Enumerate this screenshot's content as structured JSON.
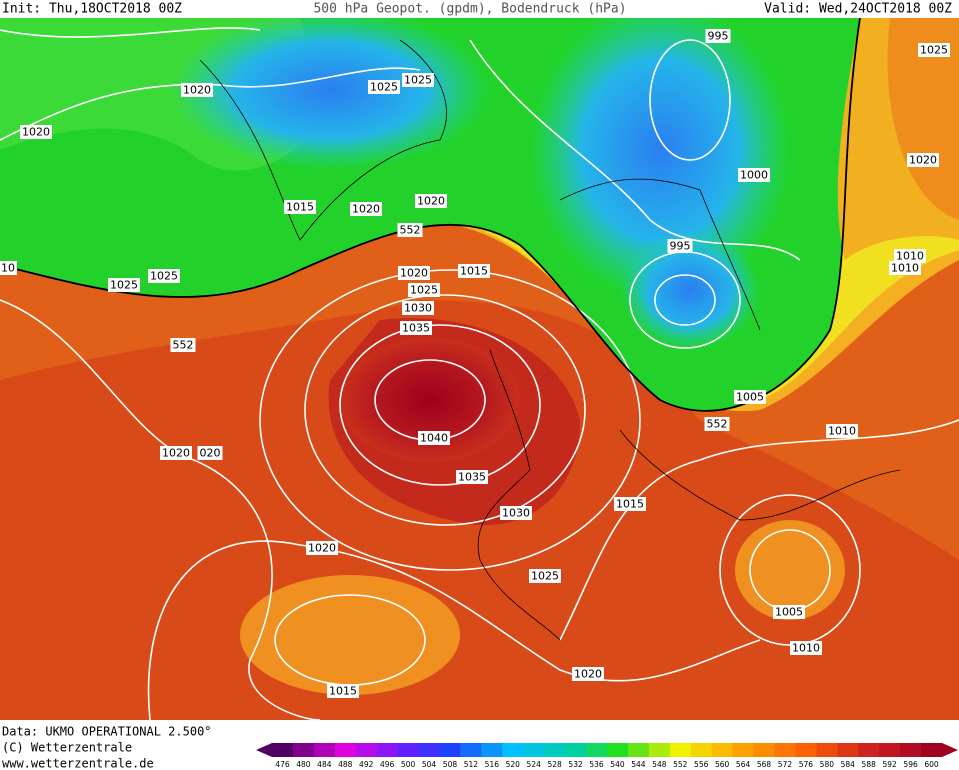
{
  "header": {
    "init": "Init: Thu,18OCT2018 00Z",
    "title": "500 hPa Geopot. (gpdm), Bodendruck (hPa)",
    "valid": "Valid: Wed,24OCT2018 00Z"
  },
  "isobar_labels": [
    "995",
    "1025",
    "1020",
    "1025",
    "1025",
    "1020",
    "1020",
    "1000",
    "1015",
    "1020",
    "1020",
    "552",
    "995",
    "1010",
    "1010",
    "10",
    "1020",
    "1015",
    "1025",
    "1025",
    "1025",
    "1030",
    "1035",
    "552",
    "1005",
    "552",
    "1010",
    "1040",
    "1020",
    "020",
    "1035",
    "1015",
    "1030",
    "1020",
    "1025",
    "1005",
    "1010",
    "1020",
    "1015"
  ],
  "footer": {
    "data": "Data: UKMO OPERATIONAL 2.500°",
    "copyright": "(C) Wetterzentrale",
    "url": "www.wetterzentrale.de"
  },
  "colorbar": [
    476,
    480,
    484,
    488,
    492,
    496,
    500,
    504,
    508,
    512,
    516,
    520,
    524,
    528,
    532,
    536,
    540,
    544,
    548,
    552,
    556,
    560,
    564,
    568,
    572,
    576,
    580,
    584,
    588,
    592,
    596,
    600
  ]
}
